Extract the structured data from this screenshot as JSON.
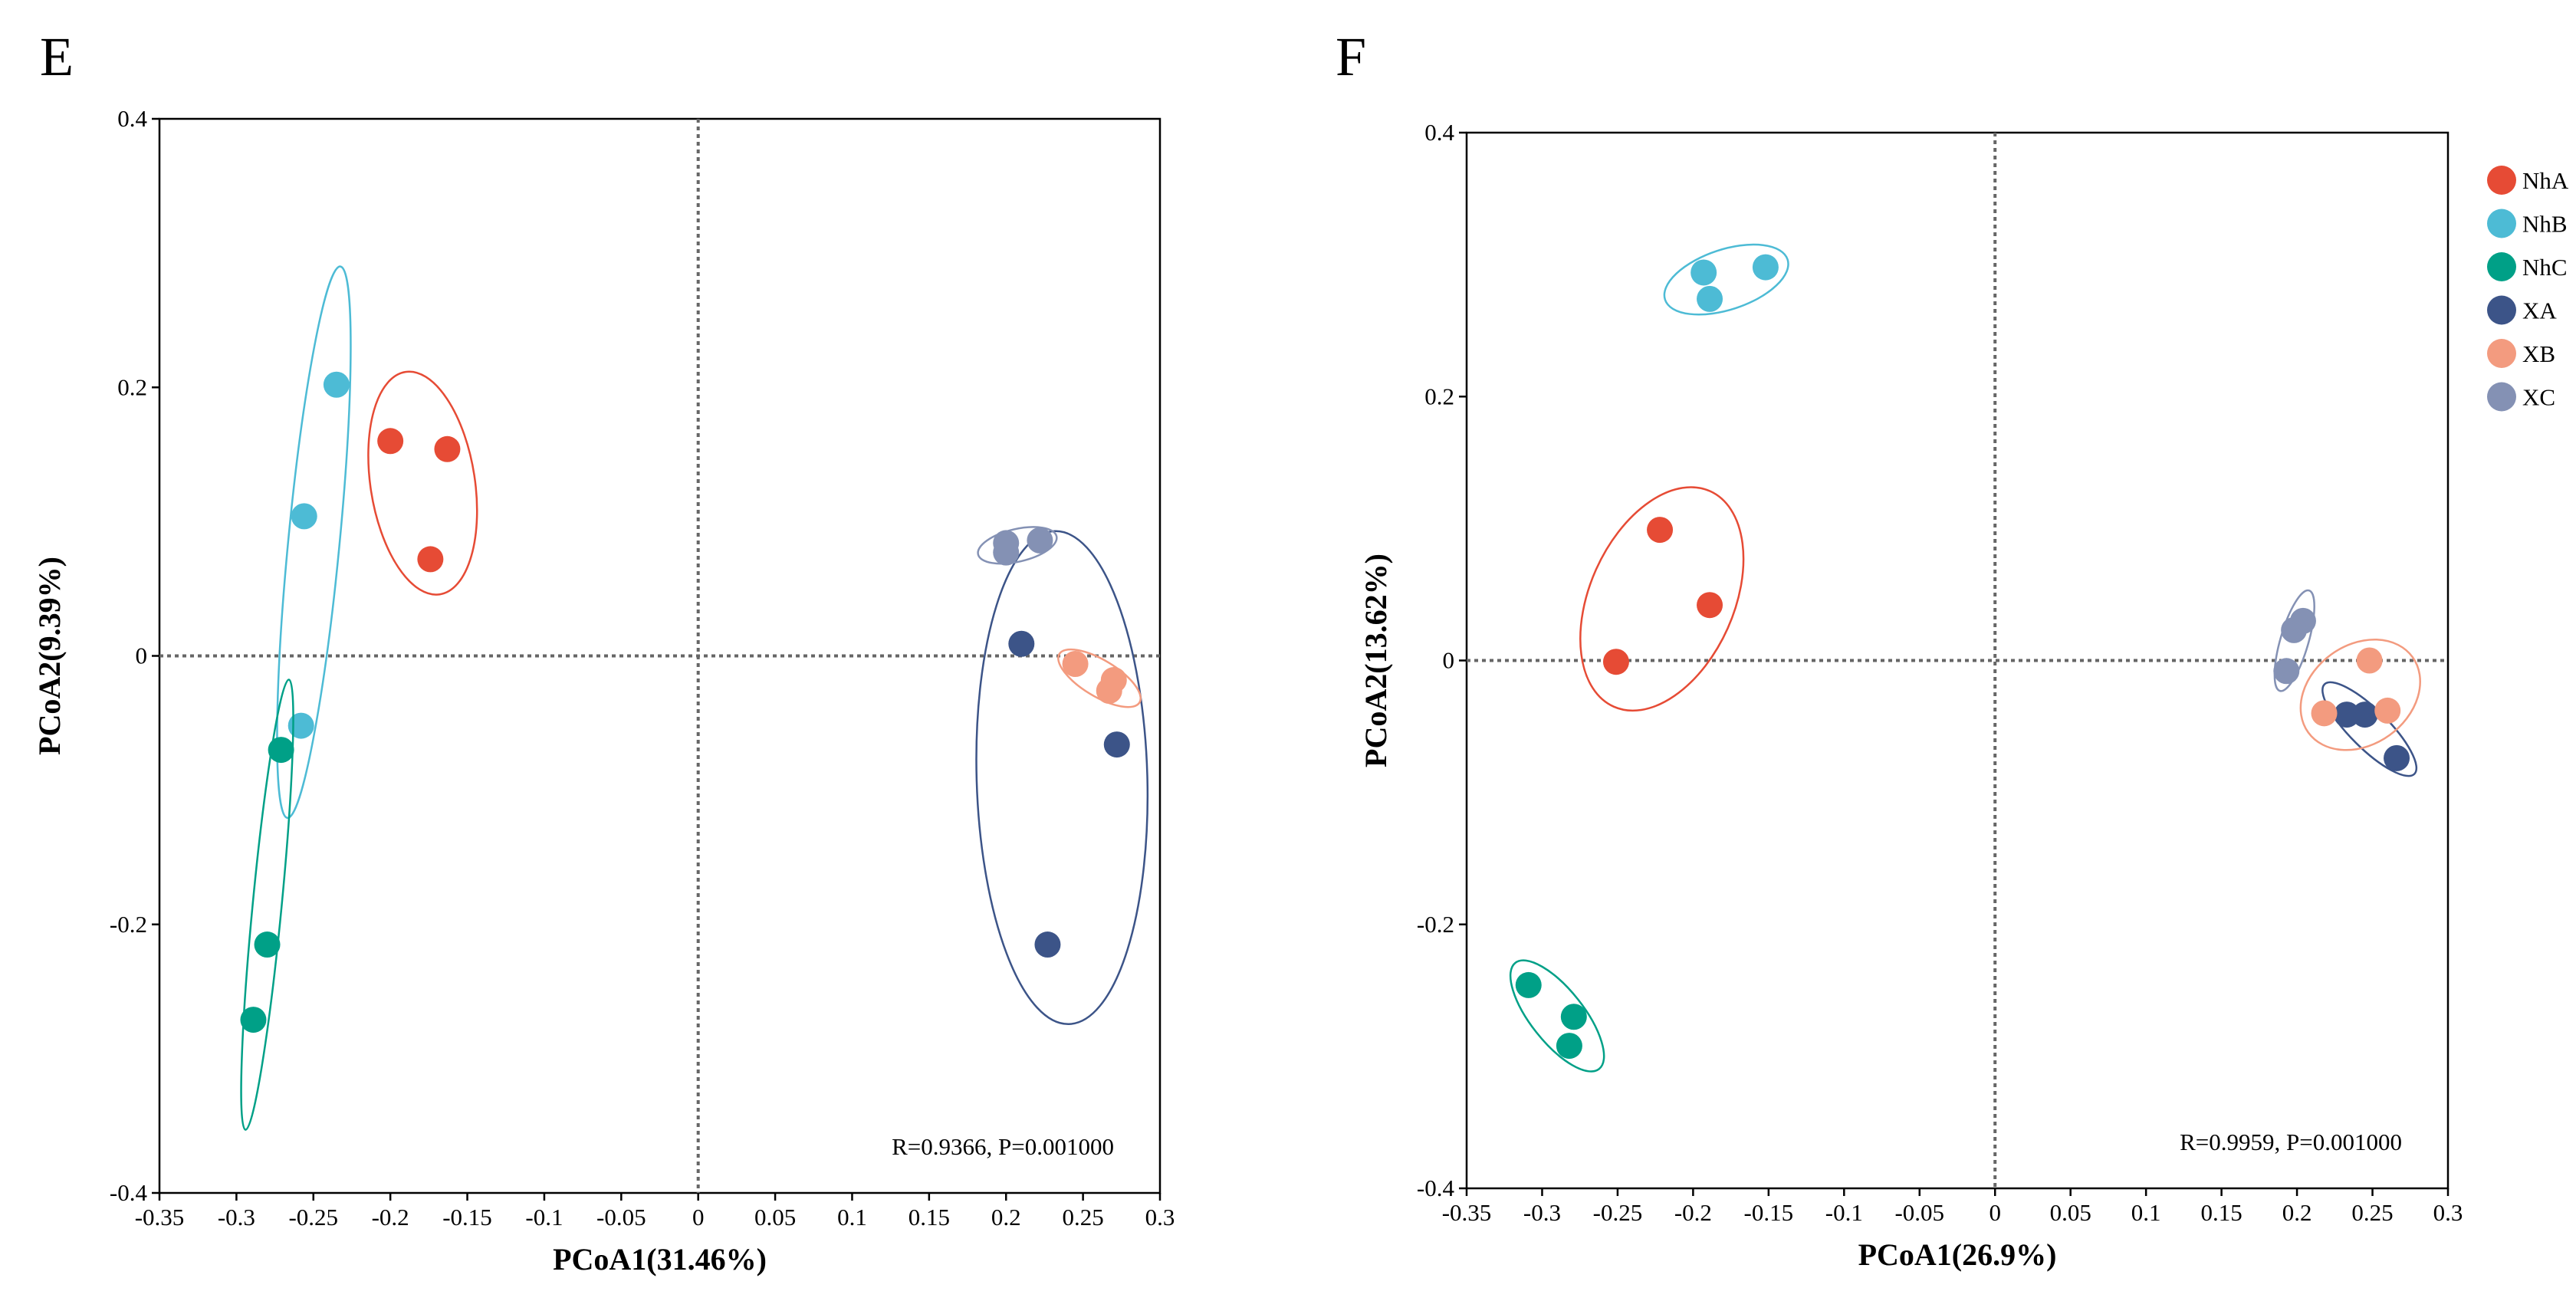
{
  "groups": [
    {
      "name": "NhA",
      "color": "#e64b35"
    },
    {
      "name": "NhB",
      "color": "#4dbbd5"
    },
    {
      "name": "NhC",
      "color": "#00a087"
    },
    {
      "name": "XA",
      "color": "#3c5488"
    },
    {
      "name": "XB",
      "color": "#f39b7f"
    },
    {
      "name": "XC",
      "color": "#8491b4"
    }
  ],
  "chart_data": [
    {
      "type": "scatter",
      "panel": "E",
      "xlabel": "PCoA1(31.46%)",
      "ylabel": "PCoA2(9.39%)",
      "xlim": [
        -0.35,
        0.3
      ],
      "ylim": [
        -0.4,
        0.4
      ],
      "xticks": [
        "-0.35",
        "-0.3",
        "-0.25",
        "-0.2",
        "-0.15",
        "-0.1",
        "-0.05",
        "0",
        "0.05",
        "0.1",
        "0.15",
        "0.2",
        "0.25",
        "0.3"
      ],
      "yticks": [
        "-0.4",
        "-0.2",
        "0",
        "0.2",
        "0.4"
      ],
      "annotation": "R=0.9366, P=0.001000",
      "legend": false,
      "series": [
        {
          "name": "NhA",
          "points": [
            [
              -0.2,
              0.16
            ],
            [
              -0.163,
              0.154
            ],
            [
              -0.174,
              0.072
            ]
          ]
        },
        {
          "name": "NhB",
          "points": [
            [
              -0.235,
              0.202
            ],
            [
              -0.256,
              0.104
            ],
            [
              -0.258,
              -0.052
            ]
          ]
        },
        {
          "name": "NhC",
          "points": [
            [
              -0.271,
              -0.07
            ],
            [
              -0.28,
              -0.215
            ],
            [
              -0.289,
              -0.271
            ]
          ]
        },
        {
          "name": "XA",
          "points": [
            [
              0.21,
              0.009
            ],
            [
              0.272,
              -0.066
            ],
            [
              0.227,
              -0.215
            ]
          ]
        },
        {
          "name": "XB",
          "points": [
            [
              0.245,
              -0.006
            ],
            [
              0.27,
              -0.018
            ],
            [
              0.267,
              -0.026
            ]
          ]
        },
        {
          "name": "XC",
          "points": [
            [
              0.2,
              0.084
            ],
            [
              0.2,
              0.077
            ],
            [
              0.222,
              0.086
            ]
          ]
        }
      ]
    },
    {
      "type": "scatter",
      "panel": "F",
      "xlabel": "PCoA1(26.9%)",
      "ylabel": "PCoA2(13.62%)",
      "xlim": [
        -0.35,
        0.3
      ],
      "ylim": [
        -0.4,
        0.4
      ],
      "xticks": [
        "-0.35",
        "-0.3",
        "-0.25",
        "-0.2",
        "-0.15",
        "-0.1",
        "-0.05",
        "0",
        "0.05",
        "0.1",
        "0.15",
        "0.2",
        "0.25",
        "0.3"
      ],
      "yticks": [
        "-0.4",
        "-0.2",
        "0",
        "0.2",
        "0.4"
      ],
      "annotation": "R=0.9959, P=0.001000",
      "legend": "right",
      "series": [
        {
          "name": "NhA",
          "points": [
            [
              -0.222,
              0.099
            ],
            [
              -0.189,
              0.042
            ],
            [
              -0.251,
              -0.001
            ]
          ]
        },
        {
          "name": "NhB",
          "points": [
            [
              -0.193,
              0.294
            ],
            [
              -0.152,
              0.298
            ],
            [
              -0.189,
              0.274
            ]
          ]
        },
        {
          "name": "NhC",
          "points": [
            [
              -0.309,
              -0.246
            ],
            [
              -0.279,
              -0.27
            ],
            [
              -0.282,
              -0.292
            ]
          ]
        },
        {
          "name": "XA",
          "points": [
            [
              0.233,
              -0.041
            ],
            [
              0.245,
              -0.041
            ],
            [
              0.266,
              -0.074
            ]
          ]
        },
        {
          "name": "XB",
          "points": [
            [
              0.248,
              0.0
            ],
            [
              0.218,
              -0.04
            ],
            [
              0.26,
              -0.038
            ]
          ]
        },
        {
          "name": "XC",
          "points": [
            [
              0.193,
              -0.008
            ],
            [
              0.198,
              0.023
            ],
            [
              0.204,
              0.03
            ]
          ]
        }
      ]
    }
  ]
}
